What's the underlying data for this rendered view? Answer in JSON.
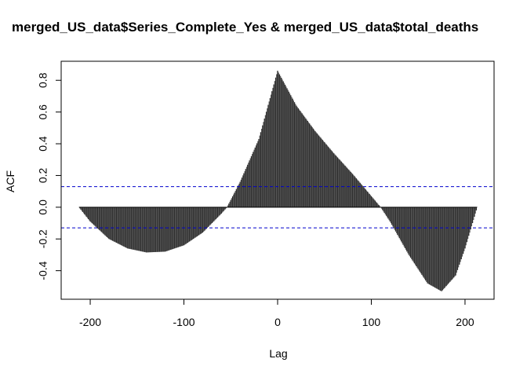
{
  "chart_data": {
    "type": "bar",
    "title": "merged_US_data$Series_Complete_Yes & merged_US_data$total_deaths",
    "xlabel": "Lag",
    "ylabel": "ACF",
    "xlim": [
      -231,
      231
    ],
    "ylim": [
      -0.58,
      0.92
    ],
    "x_ticks": [
      -200,
      -100,
      0,
      100,
      200
    ],
    "x_tick_labels": [
      "-200",
      "-100",
      "0",
      "100",
      "200"
    ],
    "y_ticks": [
      -0.4,
      -0.2,
      0.0,
      0.2,
      0.4,
      0.6,
      0.8
    ],
    "y_tick_labels": [
      "-0.4",
      "-0.2",
      "0.0",
      "0.2",
      "0.4",
      "0.6",
      "0.8"
    ],
    "lag_range": [
      -212,
      213
    ],
    "confidence_band": 0.13,
    "bar_color": "#2b2b2b",
    "bar_edge_color": "#555555",
    "ci_color": "#0000cc",
    "curve_anchors": {
      "lag": [
        -212,
        -200,
        -180,
        -160,
        -140,
        -120,
        -100,
        -80,
        -60,
        -54,
        -40,
        -20,
        0,
        20,
        40,
        60,
        80,
        100,
        110,
        120,
        140,
        160,
        175,
        190,
        200,
        207,
        213
      ],
      "acf": [
        0.0,
        -0.09,
        -0.2,
        -0.26,
        -0.285,
        -0.28,
        -0.24,
        -0.16,
        -0.04,
        0.0,
        0.16,
        0.43,
        0.86,
        0.64,
        0.48,
        0.34,
        0.21,
        0.07,
        0.0,
        -0.09,
        -0.3,
        -0.48,
        -0.53,
        -0.43,
        -0.26,
        -0.12,
        0.0
      ]
    }
  }
}
